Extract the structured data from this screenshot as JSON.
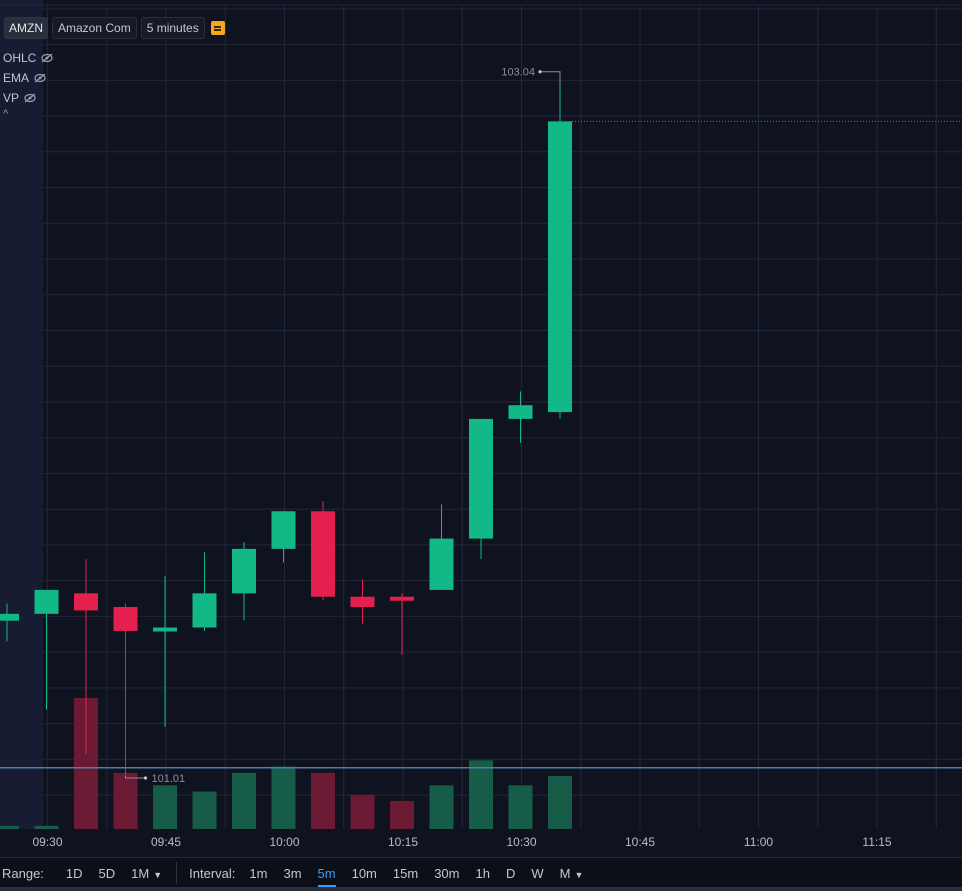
{
  "legend": {
    "symbol": "AMZN",
    "name": "Amazon Com",
    "interval": "5 minutes",
    "flag_color": "#f5a623"
  },
  "indicators": [
    {
      "label": "OHLC",
      "icon": "eye-off-icon"
    },
    {
      "label": "EMA",
      "icon": "eye-off-icon"
    },
    {
      "label": "VP",
      "icon": "eye-off-icon"
    }
  ],
  "collapse_glyph": "^",
  "bottom_bar": {
    "range_label": "Range:",
    "ranges": [
      "1D",
      "5D",
      "1M"
    ],
    "interval_label": "Interval:",
    "intervals": [
      "1m",
      "3m",
      "5m",
      "10m",
      "15m",
      "30m",
      "1h",
      "D",
      "W",
      "M"
    ],
    "active_interval": "5m"
  },
  "colors": {
    "up": "#12b886",
    "down": "#e5204f",
    "up_volume": "#165c48",
    "down_volume": "#6b1a33",
    "background": "#0f131f",
    "session_shade": "#171c33",
    "grid": "#20263a",
    "crosshair": "#4f7ea6"
  },
  "chart_data": {
    "type": "candlestick",
    "symbol": "AMZN",
    "x_ticks": [
      "09:30",
      "09:45",
      "10:00",
      "10:15",
      "10:30",
      "10:45",
      "11:00",
      "11:15"
    ],
    "candles": [
      {
        "time": "09:25",
        "open": 101.47,
        "high": 101.52,
        "low": 101.41,
        "close": 101.49
      },
      {
        "time": "09:30",
        "open": 101.49,
        "high": 101.55,
        "low": 101.21,
        "close": 101.56
      },
      {
        "time": "09:35",
        "open": 101.55,
        "high": 101.65,
        "low": 101.08,
        "close": 101.5
      },
      {
        "time": "09:40",
        "open": 101.51,
        "high": 101.52,
        "low": 101.01,
        "close": 101.44
      },
      {
        "time": "09:45",
        "open": 101.44,
        "high": 101.6,
        "low": 101.16,
        "close": 101.45
      },
      {
        "time": "09:50",
        "open": 101.45,
        "high": 101.67,
        "low": 101.44,
        "close": 101.55
      },
      {
        "time": "09:55",
        "open": 101.55,
        "high": 101.7,
        "low": 101.47,
        "close": 101.68
      },
      {
        "time": "10:00",
        "open": 101.68,
        "high": 101.77,
        "low": 101.64,
        "close": 101.79
      },
      {
        "time": "10:05",
        "open": 101.79,
        "high": 101.82,
        "low": 101.53,
        "close": 101.54
      },
      {
        "time": "10:10",
        "open": 101.54,
        "high": 101.59,
        "low": 101.46,
        "close": 101.51
      },
      {
        "time": "10:15",
        "open": 101.54,
        "high": 101.55,
        "low": 101.37,
        "close": 101.53
      },
      {
        "time": "10:20",
        "open": 101.56,
        "high": 101.81,
        "low": 101.56,
        "close": 101.71
      },
      {
        "time": "10:25",
        "open": 101.71,
        "high": 102.04,
        "low": 101.65,
        "close": 102.06
      },
      {
        "time": "10:30",
        "open": 102.06,
        "high": 102.14,
        "low": 101.99,
        "close": 102.1
      },
      {
        "time": "10:35",
        "open": 102.08,
        "high": 103.04,
        "low": 102.06,
        "close": 102.93
      }
    ],
    "volume": [
      1,
      1,
      42,
      18,
      14,
      12,
      18,
      20,
      18,
      11,
      9,
      14,
      22,
      14,
      17
    ],
    "high_marker": {
      "label": "103.04",
      "value": 103.04
    },
    "low_marker": {
      "label": "101.01",
      "value": 101.01
    },
    "last_price_line": 102.93,
    "crosshair_price": 101.04
  }
}
